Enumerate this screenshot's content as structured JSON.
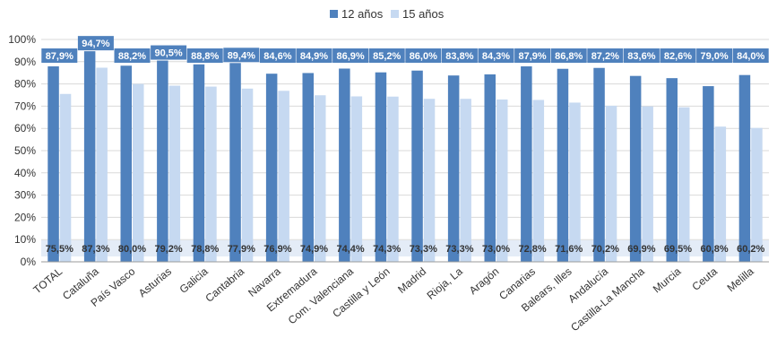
{
  "chart_data": {
    "type": "bar",
    "categories": [
      "TOTAL",
      "Cataluña",
      "País Vasco",
      "Asturias",
      "Galicia",
      "Cantabria",
      "Navarra",
      "Extremadura",
      "Com. Valenciana",
      "Castilla y León",
      "Madrid",
      "Rioja, La",
      "Aragón",
      "Canarias",
      "Balears, Illes",
      "Andalucía",
      "Castilla-La Mancha",
      "Murcia",
      "Ceuta",
      "Melilla"
    ],
    "series": [
      {
        "name": "12 años",
        "color": "#4f81bd",
        "values": [
          87.9,
          94.7,
          88.2,
          90.5,
          88.8,
          89.4,
          84.6,
          84.9,
          86.9,
          85.2,
          86.0,
          83.8,
          84.3,
          87.9,
          86.8,
          87.2,
          83.6,
          82.6,
          79.0,
          84.0
        ],
        "labels": [
          "87,9%",
          "94,7%",
          "88,2%",
          "90,5%",
          "88,8%",
          "89,4%",
          "84,6%",
          "84,9%",
          "86,9%",
          "85,2%",
          "86,0%",
          "83,8%",
          "84,3%",
          "87,9%",
          "86,8%",
          "87,2%",
          "83,6%",
          "82,6%",
          "79,0%",
          "84,0%"
        ]
      },
      {
        "name": "15 años",
        "color": "#c6d9f1",
        "values": [
          75.5,
          87.3,
          80.0,
          79.2,
          78.8,
          77.9,
          76.9,
          74.9,
          74.4,
          74.3,
          73.3,
          73.3,
          73.0,
          72.8,
          71.6,
          70.2,
          69.9,
          69.5,
          60.8,
          60.2
        ],
        "labels": [
          "75,5%",
          "87,3%",
          "80,0%",
          "79,2%",
          "78,8%",
          "77,9%",
          "76,9%",
          "74,9%",
          "74,4%",
          "74,3%",
          "73,3%",
          "73,3%",
          "73,0%",
          "72,8%",
          "71,6%",
          "70,2%",
          "69,9%",
          "69,5%",
          "60,8%",
          "60,2%"
        ]
      }
    ],
    "y_ticks": [
      "0%",
      "10%",
      "20%",
      "30%",
      "40%",
      "50%",
      "60%",
      "70%",
      "80%",
      "90%",
      "100%"
    ],
    "ylim": [
      0,
      100
    ],
    "grid": true,
    "legend_position": "top-center",
    "label_box_color": "#4f81bd",
    "bottom_label_band_color": "#e4ecf7"
  }
}
